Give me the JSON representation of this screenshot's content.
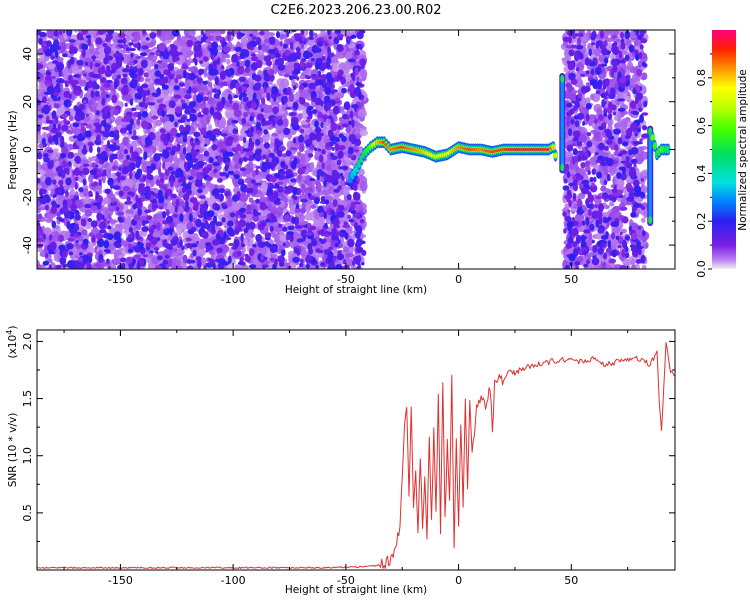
{
  "title": "C2E6.2023.206.23.00.R02",
  "colors": {
    "snr_line": "#e03030",
    "spectrogram_base": "#7a1fe6",
    "frame": "#000000"
  },
  "chart_data": [
    {
      "type": "heatmap",
      "xlabel": "Height of straight line (km)",
      "ylabel": "Frequency (Hz)",
      "xlim": [
        -187,
        96
      ],
      "ylim": [
        -50,
        50
      ],
      "x_ticks": [
        -150,
        -100,
        -50,
        0,
        50
      ],
      "y_ticks": [
        -40,
        -20,
        0,
        20,
        40
      ],
      "colorbar": {
        "label": "Normalized spectral amplitude",
        "range": [
          0,
          1
        ],
        "ticks": [
          0.0,
          0.2,
          0.4,
          0.6,
          0.8
        ],
        "tick_labels": [
          "0.0",
          "0.2",
          "0.4",
          "0.6",
          "0.8"
        ],
        "colormap": "rainbow"
      },
      "noise_regions": [
        {
          "x_range": [
            -187,
            -42
          ],
          "amplitude": 0.2
        },
        {
          "x_range": [
            47,
            83
          ],
          "amplitude": 0.2
        }
      ],
      "signal_trace": {
        "x": [
          -48,
          -45,
          -42,
          -39,
          -36,
          -33,
          -30,
          -25,
          -20,
          -15,
          -10,
          -5,
          0,
          5,
          10,
          15,
          20,
          25,
          30,
          35,
          40,
          42,
          44
        ],
        "y": [
          -12,
          -8,
          -2,
          1,
          3,
          3,
          0,
          1,
          0,
          -1,
          -3,
          -2,
          1,
          0,
          0,
          -1,
          0,
          0,
          0,
          0,
          0,
          1,
          -6
        ],
        "amplitude": [
          0.3,
          0.4,
          0.5,
          0.6,
          0.8,
          0.9,
          0.85,
          0.9,
          0.85,
          0.8,
          0.7,
          0.75,
          0.85,
          0.9,
          0.85,
          0.9,
          0.9,
          0.95,
          0.95,
          0.95,
          0.95,
          0.8,
          0.6
        ]
      },
      "spikes": [
        {
          "x": 46,
          "y_range": [
            -10,
            32
          ],
          "amplitude": 0.5
        },
        {
          "x": 85,
          "y_range": [
            -32,
            10
          ],
          "amplitude": 0.5
        }
      ],
      "tail_trace": {
        "x": [
          86,
          88,
          90,
          92,
          94
        ],
        "y": [
          5,
          -2,
          0,
          0,
          0
        ],
        "amplitude": [
          0.6,
          0.5,
          0.6,
          0.5,
          0.4
        ]
      }
    },
    {
      "type": "line",
      "xlabel": "Height of straight line (km)",
      "ylabel": "SNR (10 * v/v)",
      "y_scale_label": "(x10",
      "y_scale_exponent": "4",
      "y_scale_suffix": ")",
      "xlim": [
        -187,
        96
      ],
      "ylim": [
        0,
        2.1
      ],
      "x_ticks": [
        -150,
        -100,
        -50,
        0,
        50
      ],
      "y_ticks": [
        0.5,
        1.0,
        1.5,
        2.0
      ],
      "y_tick_labels": [
        "0.5",
        "1.0",
        "1.5",
        "2.0"
      ],
      "series": [
        {
          "x": [
            -187,
            -60,
            -40,
            -33,
            -30,
            -28,
            -26,
            -25,
            -24,
            -23,
            -22,
            -21,
            -20,
            -19,
            -18,
            -17,
            -16,
            -15,
            -14,
            -13,
            -12,
            -11,
            -10,
            -9,
            -8,
            -7,
            -6,
            -5,
            -4,
            -3,
            -2,
            -1,
            0,
            1,
            2,
            3,
            4,
            5,
            6,
            8,
            10,
            12,
            14,
            15,
            16,
            18,
            20,
            22,
            25,
            28,
            30,
            35,
            40,
            45,
            50,
            55,
            60,
            65,
            70,
            75,
            80,
            85,
            88,
            89,
            90,
            92,
            94,
            96
          ],
          "y": [
            0.02,
            0.02,
            0.03,
            0.05,
            0.1,
            0.2,
            0.4,
            0.8,
            1.3,
            1.45,
            0.6,
            1.4,
            0.5,
            0.9,
            0.3,
            1.0,
            0.35,
            0.8,
            0.3,
            1.2,
            0.4,
            1.25,
            0.5,
            1.55,
            0.35,
            1.65,
            0.45,
            1.1,
            0.6,
            1.75,
            0.15,
            1.2,
            0.4,
            1.3,
            0.55,
            1.5,
            0.7,
            1.5,
            1.0,
            1.4,
            1.55,
            1.4,
            1.6,
            1.2,
            1.65,
            1.7,
            1.65,
            1.75,
            1.72,
            1.76,
            1.78,
            1.8,
            1.82,
            1.84,
            1.84,
            1.82,
            1.85,
            1.8,
            1.82,
            1.84,
            1.85,
            1.8,
            1.9,
            1.5,
            1.2,
            2.0,
            1.75,
            1.7
          ]
        }
      ]
    }
  ]
}
